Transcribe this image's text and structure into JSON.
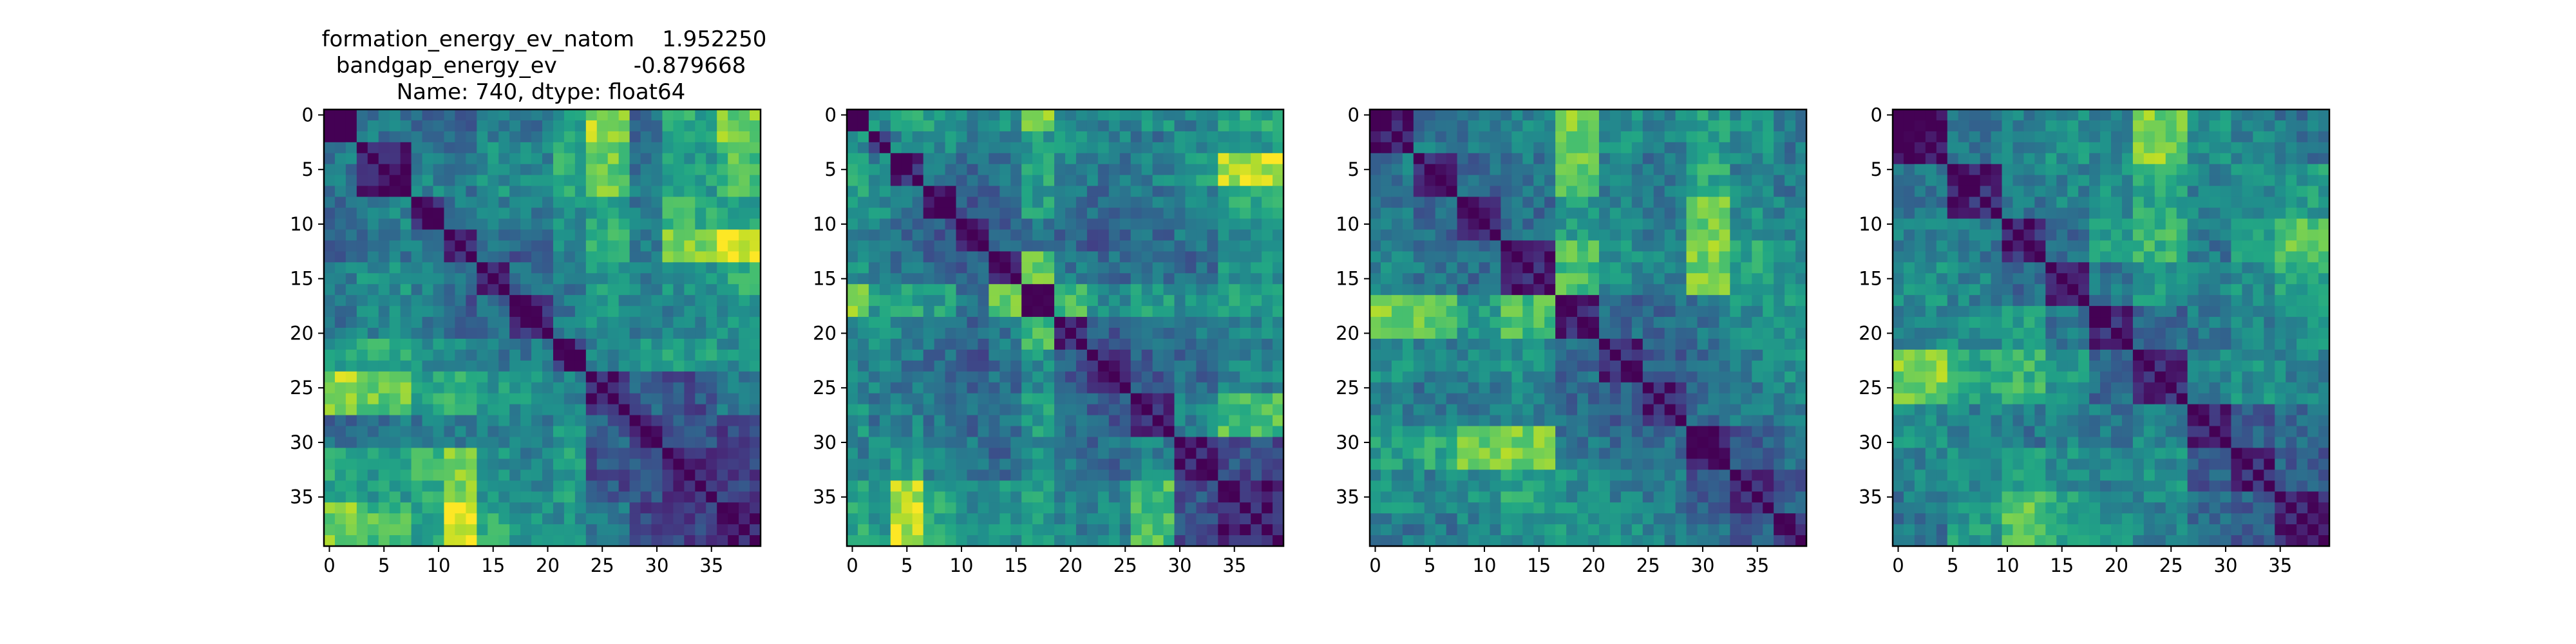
{
  "figure": {
    "title_lines": [
      "formation_energy_ev_natom    1.952250",
      "bandgap_energy_ev           -0.879668",
      "Name: 740, dtype: float64"
    ]
  },
  "chart_data": [
    {
      "type": "heatmap",
      "title_ref": "figure.title_lines",
      "colormap": "viridis",
      "size": 40,
      "xlim": [
        0,
        39
      ],
      "ylim": [
        39,
        0
      ],
      "xticks": [
        0,
        5,
        10,
        15,
        20,
        25,
        30,
        35
      ],
      "yticks": [
        0,
        5,
        10,
        15,
        20,
        25,
        30,
        35
      ],
      "block_boundaries": [
        3,
        8,
        11,
        14,
        17,
        21,
        24,
        28,
        31,
        36
      ],
      "block_levels": [
        [
          0.05,
          0.4,
          0.35,
          0.3,
          0.45,
          0.4,
          0.55,
          0.85,
          0.35,
          0.6,
          0.8
        ],
        [
          0.4,
          0.1,
          0.45,
          0.4,
          0.5,
          0.45,
          0.6,
          0.75,
          0.4,
          0.55,
          0.7
        ],
        [
          0.35,
          0.45,
          0.1,
          0.4,
          0.45,
          0.4,
          0.5,
          0.6,
          0.4,
          0.65,
          0.55
        ],
        [
          0.3,
          0.4,
          0.4,
          0.1,
          0.35,
          0.3,
          0.45,
          0.7,
          0.45,
          0.8,
          0.95
        ],
        [
          0.45,
          0.5,
          0.45,
          0.35,
          0.1,
          0.35,
          0.4,
          0.55,
          0.45,
          0.5,
          0.6
        ],
        [
          0.4,
          0.45,
          0.4,
          0.3,
          0.35,
          0.1,
          0.4,
          0.5,
          0.4,
          0.45,
          0.5
        ],
        [
          0.75,
          0.7,
          0.65,
          0.55,
          0.5,
          0.4,
          0.1,
          0.45,
          0.5,
          0.55,
          0.5
        ],
        [
          0.85,
          0.75,
          0.6,
          0.7,
          0.55,
          0.5,
          0.45,
          0.1,
          0.3,
          0.25,
          0.4
        ],
        [
          0.35,
          0.4,
          0.4,
          0.45,
          0.45,
          0.4,
          0.5,
          0.3,
          0.1,
          0.25,
          0.2
        ],
        [
          0.6,
          0.55,
          0.65,
          0.8,
          0.5,
          0.45,
          0.55,
          0.25,
          0.25,
          0.1,
          0.2
        ],
        [
          0.8,
          0.7,
          0.55,
          0.95,
          0.6,
          0.5,
          0.5,
          0.4,
          0.2,
          0.2,
          0.1
        ]
      ],
      "seed": 11
    },
    {
      "type": "heatmap",
      "colormap": "viridis",
      "size": 40,
      "xlim": [
        0,
        39
      ],
      "ylim": [
        39,
        0
      ],
      "xticks": [
        0,
        5,
        10,
        15,
        20,
        25,
        30,
        35
      ],
      "yticks": [
        0,
        5,
        10,
        15,
        20,
        25,
        30,
        35
      ],
      "block_boundaries": [
        2,
        4,
        7,
        10,
        13,
        16,
        19,
        22,
        26,
        30,
        34
      ],
      "block_levels": [
        [
          0.05,
          0.5,
          0.6,
          0.55,
          0.45,
          0.5,
          0.85,
          0.5,
          0.45,
          0.5,
          0.45,
          0.6
        ],
        [
          0.5,
          0.1,
          0.45,
          0.5,
          0.4,
          0.45,
          0.55,
          0.5,
          0.45,
          0.4,
          0.5,
          0.55
        ],
        [
          0.6,
          0.45,
          0.1,
          0.4,
          0.35,
          0.4,
          0.6,
          0.45,
          0.4,
          0.45,
          0.55,
          0.9
        ],
        [
          0.55,
          0.5,
          0.4,
          0.1,
          0.3,
          0.35,
          0.55,
          0.4,
          0.35,
          0.4,
          0.45,
          0.6
        ],
        [
          0.45,
          0.4,
          0.35,
          0.3,
          0.1,
          0.3,
          0.4,
          0.35,
          0.3,
          0.35,
          0.4,
          0.5
        ],
        [
          0.5,
          0.45,
          0.4,
          0.35,
          0.3,
          0.1,
          0.75,
          0.4,
          0.35,
          0.4,
          0.35,
          0.5
        ],
        [
          0.85,
          0.55,
          0.6,
          0.55,
          0.4,
          0.75,
          0.1,
          0.7,
          0.5,
          0.55,
          0.5,
          0.55
        ],
        [
          0.5,
          0.5,
          0.45,
          0.4,
          0.35,
          0.4,
          0.7,
          0.1,
          0.3,
          0.35,
          0.4,
          0.45
        ],
        [
          0.45,
          0.45,
          0.4,
          0.35,
          0.3,
          0.35,
          0.5,
          0.3,
          0.1,
          0.3,
          0.35,
          0.45
        ],
        [
          0.5,
          0.4,
          0.45,
          0.4,
          0.35,
          0.4,
          0.55,
          0.35,
          0.3,
          0.1,
          0.45,
          0.7
        ],
        [
          0.45,
          0.5,
          0.55,
          0.45,
          0.4,
          0.35,
          0.5,
          0.4,
          0.35,
          0.45,
          0.1,
          0.25
        ],
        [
          0.6,
          0.55,
          0.9,
          0.6,
          0.5,
          0.5,
          0.55,
          0.45,
          0.45,
          0.7,
          0.25,
          0.1
        ]
      ],
      "seed": 23
    },
    {
      "type": "heatmap",
      "colormap": "viridis",
      "size": 40,
      "xlim": [
        0,
        39
      ],
      "ylim": [
        39,
        0
      ],
      "xticks": [
        0,
        5,
        10,
        15,
        20,
        25,
        30,
        35
      ],
      "yticks": [
        0,
        5,
        10,
        15,
        20,
        25,
        30,
        35
      ],
      "block_boundaries": [
        4,
        8,
        12,
        17,
        21,
        25,
        29,
        33,
        37
      ],
      "block_levels": [
        [
          0.05,
          0.4,
          0.4,
          0.45,
          0.8,
          0.5,
          0.45,
          0.55,
          0.5,
          0.4
        ],
        [
          0.4,
          0.1,
          0.35,
          0.4,
          0.75,
          0.45,
          0.4,
          0.6,
          0.45,
          0.4
        ],
        [
          0.4,
          0.35,
          0.1,
          0.35,
          0.55,
          0.45,
          0.4,
          0.75,
          0.5,
          0.45
        ],
        [
          0.45,
          0.4,
          0.35,
          0.1,
          0.7,
          0.5,
          0.45,
          0.8,
          0.6,
          0.5
        ],
        [
          0.8,
          0.75,
          0.55,
          0.7,
          0.1,
          0.35,
          0.35,
          0.4,
          0.5,
          0.55
        ],
        [
          0.5,
          0.45,
          0.45,
          0.5,
          0.35,
          0.1,
          0.3,
          0.35,
          0.45,
          0.5
        ],
        [
          0.45,
          0.4,
          0.4,
          0.45,
          0.35,
          0.3,
          0.1,
          0.35,
          0.4,
          0.45
        ],
        [
          0.55,
          0.6,
          0.75,
          0.8,
          0.4,
          0.35,
          0.35,
          0.1,
          0.3,
          0.35
        ],
        [
          0.5,
          0.45,
          0.5,
          0.6,
          0.5,
          0.45,
          0.4,
          0.3,
          0.1,
          0.3
        ],
        [
          0.4,
          0.4,
          0.45,
          0.5,
          0.55,
          0.5,
          0.45,
          0.35,
          0.3,
          0.1
        ]
      ],
      "seed": 37
    },
    {
      "type": "heatmap",
      "colormap": "viridis",
      "size": 40,
      "xlim": [
        0,
        39
      ],
      "ylim": [
        39,
        0
      ],
      "xticks": [
        0,
        5,
        10,
        15,
        20,
        25,
        30,
        35
      ],
      "yticks": [
        0,
        5,
        10,
        15,
        20,
        25,
        30,
        35
      ],
      "block_boundaries": [
        5,
        10,
        14,
        18,
        22,
        27,
        31,
        35
      ],
      "block_levels": [
        [
          0.05,
          0.4,
          0.45,
          0.5,
          0.45,
          0.8,
          0.5,
          0.45,
          0.4
        ],
        [
          0.4,
          0.1,
          0.4,
          0.45,
          0.5,
          0.6,
          0.45,
          0.5,
          0.55
        ],
        [
          0.45,
          0.4,
          0.1,
          0.35,
          0.55,
          0.65,
          0.4,
          0.55,
          0.75
        ],
        [
          0.5,
          0.45,
          0.35,
          0.1,
          0.4,
          0.55,
          0.45,
          0.5,
          0.6
        ],
        [
          0.45,
          0.5,
          0.55,
          0.4,
          0.1,
          0.35,
          0.4,
          0.45,
          0.5
        ],
        [
          0.8,
          0.6,
          0.65,
          0.55,
          0.35,
          0.1,
          0.45,
          0.5,
          0.45
        ],
        [
          0.5,
          0.45,
          0.4,
          0.45,
          0.4,
          0.45,
          0.1,
          0.3,
          0.35
        ],
        [
          0.45,
          0.5,
          0.55,
          0.5,
          0.45,
          0.5,
          0.3,
          0.1,
          0.3
        ],
        [
          0.4,
          0.55,
          0.75,
          0.6,
          0.5,
          0.45,
          0.35,
          0.3,
          0.1
        ]
      ],
      "seed": 53
    }
  ]
}
